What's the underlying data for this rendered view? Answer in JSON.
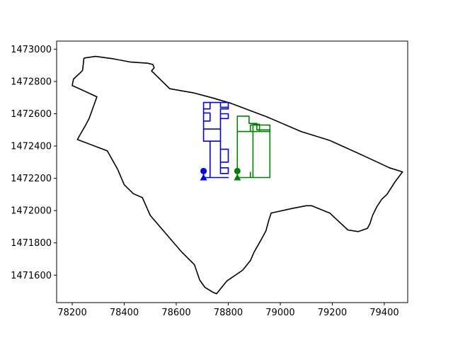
{
  "chart_data": {
    "type": "line",
    "title": "",
    "xlabel": "",
    "ylabel": "",
    "xlim": [
      78140,
      79490
    ],
    "ylim": [
      1471430,
      1473050
    ],
    "xticks": [
      78200,
      78400,
      78600,
      78800,
      79000,
      79200,
      79400
    ],
    "yticks": [
      1471600,
      1471800,
      1472000,
      1472200,
      1472400,
      1472600,
      1472800,
      1473000
    ],
    "grid": false,
    "colors": {
      "boundary": "#000000",
      "series_1": "#0000ff",
      "series_2": "#008000"
    },
    "boundary": {
      "x": [
        78245,
        78290,
        78360,
        78425,
        78490,
        78510,
        78515,
        78505,
        78575,
        78665,
        78735,
        78810,
        78950,
        79080,
        79190,
        79320,
        79420,
        79470,
        79440,
        79410,
        79390,
        79370,
        79355,
        79345,
        79335,
        79300,
        79260,
        79190,
        79120,
        79100,
        79050,
        78965,
        78955,
        78945,
        78925,
        78900,
        78885,
        78855,
        78795,
        78755,
        78740,
        78730,
        78710,
        78690,
        78670,
        78620,
        78540,
        78500,
        78470,
        78435,
        78400,
        78375,
        78335,
        78220,
        78230,
        78250,
        78265,
        78295,
        78200,
        78205,
        78235,
        78240,
        78245
      ],
      "y": [
        1472945,
        1472955,
        1472940,
        1472920,
        1472913,
        1472905,
        1472885,
        1472865,
        1472755,
        1472730,
        1472700,
        1472665,
        1472580,
        1472490,
        1472435,
        1472340,
        1472265,
        1472240,
        1472175,
        1472100,
        1472070,
        1472020,
        1471970,
        1471920,
        1471890,
        1471870,
        1471880,
        1471985,
        1472030,
        1472030,
        1472015,
        1471985,
        1471935,
        1471875,
        1471815,
        1471745,
        1471690,
        1471630,
        1471565,
        1471485,
        1471495,
        1471505,
        1471525,
        1471570,
        1471665,
        1471745,
        1471895,
        1471970,
        1472080,
        1472105,
        1472160,
        1472255,
        1472370,
        1472440,
        1472470,
        1472525,
        1472570,
        1472705,
        1472775,
        1472815,
        1472860,
        1472870,
        1472945
      ]
    },
    "series": [
      {
        "marker_circle": [
          78705,
          1472245
        ],
        "marker_triangle": [
          78705,
          1472205
        ],
        "x": [
          78705,
          78705,
          78800,
          78730,
          78730,
          78770,
          78770,
          78800,
          78800,
          78770,
          78770,
          78800,
          78800,
          78770,
          78770,
          78800,
          78800,
          78770,
          78770,
          78800,
          78800,
          78770,
          78770,
          78800,
          78800,
          78705,
          78705,
          78770,
          78770,
          78705,
          78705,
          78730,
          78730,
          78705,
          78705,
          78730,
          78730,
          78705
        ],
        "y": [
          1472245,
          1472205,
          1472205,
          1472205,
          1472430,
          1472430,
          1472380,
          1472380,
          1472300,
          1472300,
          1472265,
          1472265,
          1472230,
          1472230,
          1472600,
          1472600,
          1472570,
          1472570,
          1472630,
          1472630,
          1472670,
          1472670,
          1472640,
          1472640,
          1472670,
          1472670,
          1472505,
          1472505,
          1472430,
          1472430,
          1472670,
          1472670,
          1472630,
          1472630,
          1472605,
          1472605,
          1472555,
          1472555
        ]
      },
      {
        "marker_circle": [
          78835,
          1472245
        ],
        "marker_triangle": [
          78835,
          1472205
        ],
        "x": [
          78835,
          78835,
          78895,
          78895,
          78920,
          78920,
          78885,
          78885,
          78960,
          78960,
          78835,
          78835,
          78850,
          78835,
          78835,
          78880,
          78880,
          78910,
          78910,
          78960,
          78960,
          78885,
          78885
        ],
        "y": [
          1472245,
          1472205,
          1472205,
          1472535,
          1472535,
          1472490,
          1472490,
          1472530,
          1472530,
          1472490,
          1472490,
          1472205,
          1472205,
          1472205,
          1472585,
          1472585,
          1472540,
          1472540,
          1472500,
          1472500,
          1472205,
          1472205,
          1472240
        ]
      }
    ]
  }
}
